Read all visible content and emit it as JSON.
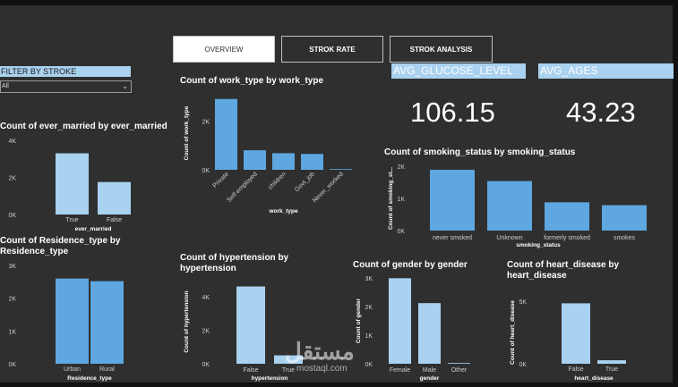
{
  "tabs": [
    {
      "label": "OVERVIEW",
      "active": true
    },
    {
      "label": "STROK RATE",
      "active": false
    },
    {
      "label": "STROK ANALYSIS",
      "active": false
    }
  ],
  "filter": {
    "label": "FILTER BY STROKE",
    "value": "All"
  },
  "kpis": [
    {
      "label": "AVG_GLUCOSE_LEVEL",
      "value": "106.15"
    },
    {
      "label": "AVG_AGES",
      "value": "43.23"
    }
  ],
  "watermark": {
    "logo_text": "مستقل",
    "sub_text": "mostaql.com"
  },
  "colors": {
    "bar_dark": "#5ea7e0",
    "bar_light": "#a9d1f0",
    "background": "#2f2f2f",
    "text": "#ffffff",
    "tick": "#cccccc"
  },
  "chart_data": [
    {
      "id": "ever_married",
      "type": "bar",
      "title": "Count of ever_married by ever_married",
      "xlabel": "ever_married",
      "ylabel": "",
      "categories": [
        "True",
        "False"
      ],
      "values": [
        3300,
        1750
      ],
      "bar_colors": [
        "#a9d1f0",
        "#a9d1f0"
      ],
      "ylim": [
        0,
        4000
      ],
      "yticks": [
        "0K",
        "2K",
        "4K"
      ]
    },
    {
      "id": "residence_type",
      "type": "bar",
      "title": "Count of Residence_type by Residence_type",
      "xlabel": "Residence_type",
      "ylabel": "",
      "categories": [
        "Urban",
        "Rural"
      ],
      "values": [
        2600,
        2520
      ],
      "bar_colors": [
        "#5ea7e0",
        "#5ea7e0"
      ],
      "ylim": [
        0,
        3000
      ],
      "yticks": [
        "0K",
        "1K",
        "2K",
        "3K"
      ]
    },
    {
      "id": "work_type",
      "type": "bar",
      "title": "Count of work_type by work_type",
      "xlabel": "work_type",
      "ylabel": "Count of work_type",
      "categories": [
        "Private",
        "Self-employed",
        "children",
        "Govt_job",
        "Never_worked"
      ],
      "values": [
        2900,
        800,
        680,
        650,
        22
      ],
      "bar_colors": [
        "#5ea7e0",
        "#5ea7e0",
        "#5ea7e0",
        "#5ea7e0",
        "#5ea7e0"
      ],
      "ylim": [
        0,
        3000
      ],
      "yticks": [
        "0K",
        "2K"
      ]
    },
    {
      "id": "hypertension",
      "type": "bar",
      "title": "Count of hypertension by hypertension",
      "xlabel": "hypertension",
      "ylabel": "Count of hypertension",
      "categories": [
        "False",
        "True"
      ],
      "values": [
        4600,
        500
      ],
      "bar_colors": [
        "#a9d1f0",
        "#a9d1f0"
      ],
      "ylim": [
        0,
        5000
      ],
      "yticks": [
        "0K",
        "2K",
        "4K"
      ]
    },
    {
      "id": "smoking_status",
      "type": "bar",
      "title": "Count of smoking_status by smoking_status",
      "xlabel": "smoking_status",
      "ylabel": "Count of smoking_st...",
      "categories": [
        "never smoked",
        "Unknown",
        "formerly smoked",
        "smokes"
      ],
      "values": [
        1890,
        1540,
        880,
        790
      ],
      "bar_colors": [
        "#5ea7e0",
        "#5ea7e0",
        "#5ea7e0",
        "#5ea7e0"
      ],
      "ylim": [
        0,
        2000
      ],
      "yticks": [
        "0K",
        "1K",
        "2K"
      ]
    },
    {
      "id": "gender",
      "type": "bar",
      "title": "Count of gender by gender",
      "xlabel": "gender",
      "ylabel": "Count of gender",
      "categories": [
        "Female",
        "Male",
        "Other"
      ],
      "values": [
        2990,
        2120,
        1
      ],
      "bar_colors": [
        "#a9d1f0",
        "#a9d1f0",
        "#a9d1f0"
      ],
      "ylim": [
        0,
        3000
      ],
      "yticks": [
        "0K",
        "1K",
        "2K",
        "3K"
      ]
    },
    {
      "id": "heart_disease",
      "type": "bar",
      "title": "Count of heart_disease by heart_disease",
      "xlabel": "heart_disease",
      "ylabel": "Count of heart_disease",
      "categories": [
        "False",
        "True"
      ],
      "values": [
        4830,
        280
      ],
      "bar_colors": [
        "#a9d1f0",
        "#a9d1f0"
      ],
      "ylim": [
        0,
        5000
      ],
      "yticks": [
        "0K",
        "5K"
      ]
    }
  ]
}
